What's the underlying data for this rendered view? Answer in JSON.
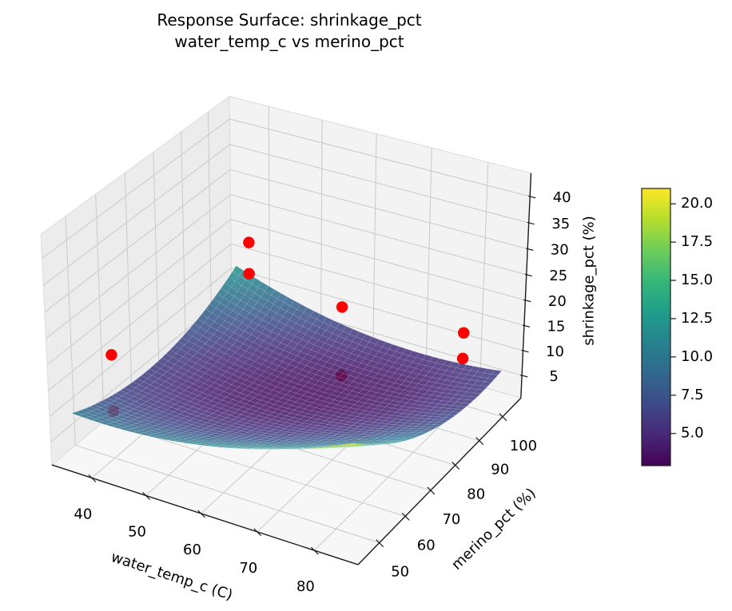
{
  "title": {
    "line1": "Response Surface: shrinkage_pct",
    "line2": "water_temp_c vs merino_pct"
  },
  "chart_data": {
    "type": "surface3d",
    "xlabel": "water_temp_c (C)",
    "ylabel": "merino_pct (%)",
    "zlabel": "shrinkage_pct (%)",
    "x_ticks": [
      40,
      50,
      60,
      70,
      80
    ],
    "y_ticks": [
      50,
      60,
      70,
      80,
      90,
      100
    ],
    "z_ticks": [
      5,
      10,
      15,
      20,
      25,
      30,
      35,
      40
    ],
    "xlim": [
      32.5,
      87.5
    ],
    "ylim": [
      42,
      108
    ],
    "zlim": [
      0.4,
      44.4
    ],
    "surface": {
      "x_range": [
        35,
        85
      ],
      "y_range": [
        45,
        105
      ],
      "grid_n": 40,
      "model": "z = a + b*s^2 + c*t^2 + d*s*t + e*s + f*t with s=(x-sc)/ss, t=(y-tc)/ts",
      "coeffs": {
        "a": 4.0,
        "b": 3.5,
        "c": 5.0,
        "d": -4.25,
        "e": 1.25,
        "f": -3.0,
        "sc": 60,
        "ss": 25,
        "tc": 75,
        "ts": 30
      },
      "corner_values": {
        "x35_y45": 10.0,
        "x85_y45": 21.0,
        "x35_y105": 12.5,
        "x85_y105": 6.5
      },
      "colormap": "viridis",
      "vmin": 2.9,
      "vmax": 21.0,
      "opacity": 0.85
    },
    "scatter": {
      "color": "#ff0000",
      "points": [
        {
          "water_temp_c": 40,
          "merino_pct": 100,
          "shrinkage_pct": 20.8,
          "occluded": false
        },
        {
          "water_temp_c": 40,
          "merino_pct": 100,
          "shrinkage_pct": 14.5,
          "occluded": false
        },
        {
          "water_temp_c": 60,
          "merino_pct": 95,
          "shrinkage_pct": 16.0,
          "occluded": false
        },
        {
          "water_temp_c": 80,
          "merino_pct": 100,
          "shrinkage_pct": 14.8,
          "occluded": false
        },
        {
          "water_temp_c": 80,
          "merino_pct": 100,
          "shrinkage_pct": 9.7,
          "occluded": false
        },
        {
          "water_temp_c": 40,
          "merino_pct": 50,
          "shrinkage_pct": 20.6,
          "occluded": false
        },
        {
          "water_temp_c": 60,
          "merino_pct": 95,
          "shrinkage_pct": 2.2,
          "occluded": true
        },
        {
          "water_temp_c": 40,
          "merino_pct": 50,
          "shrinkage_pct": 9.7,
          "occluded": true
        }
      ]
    },
    "colorbar": {
      "ticks": [
        5.0,
        7.5,
        10.0,
        12.5,
        15.0,
        17.5,
        20.0
      ],
      "vmin": 2.9,
      "vmax": 21.0
    },
    "legend": null,
    "grid": true
  },
  "colors": {
    "scatter": "#ff0000",
    "pane_left": "#ececec",
    "pane_right": "#f3f3f3",
    "pane_floor": "#f7f7f7",
    "grid_line": "#c9c9c9",
    "axis_line": "#1c1c1c",
    "text": "#000000"
  }
}
